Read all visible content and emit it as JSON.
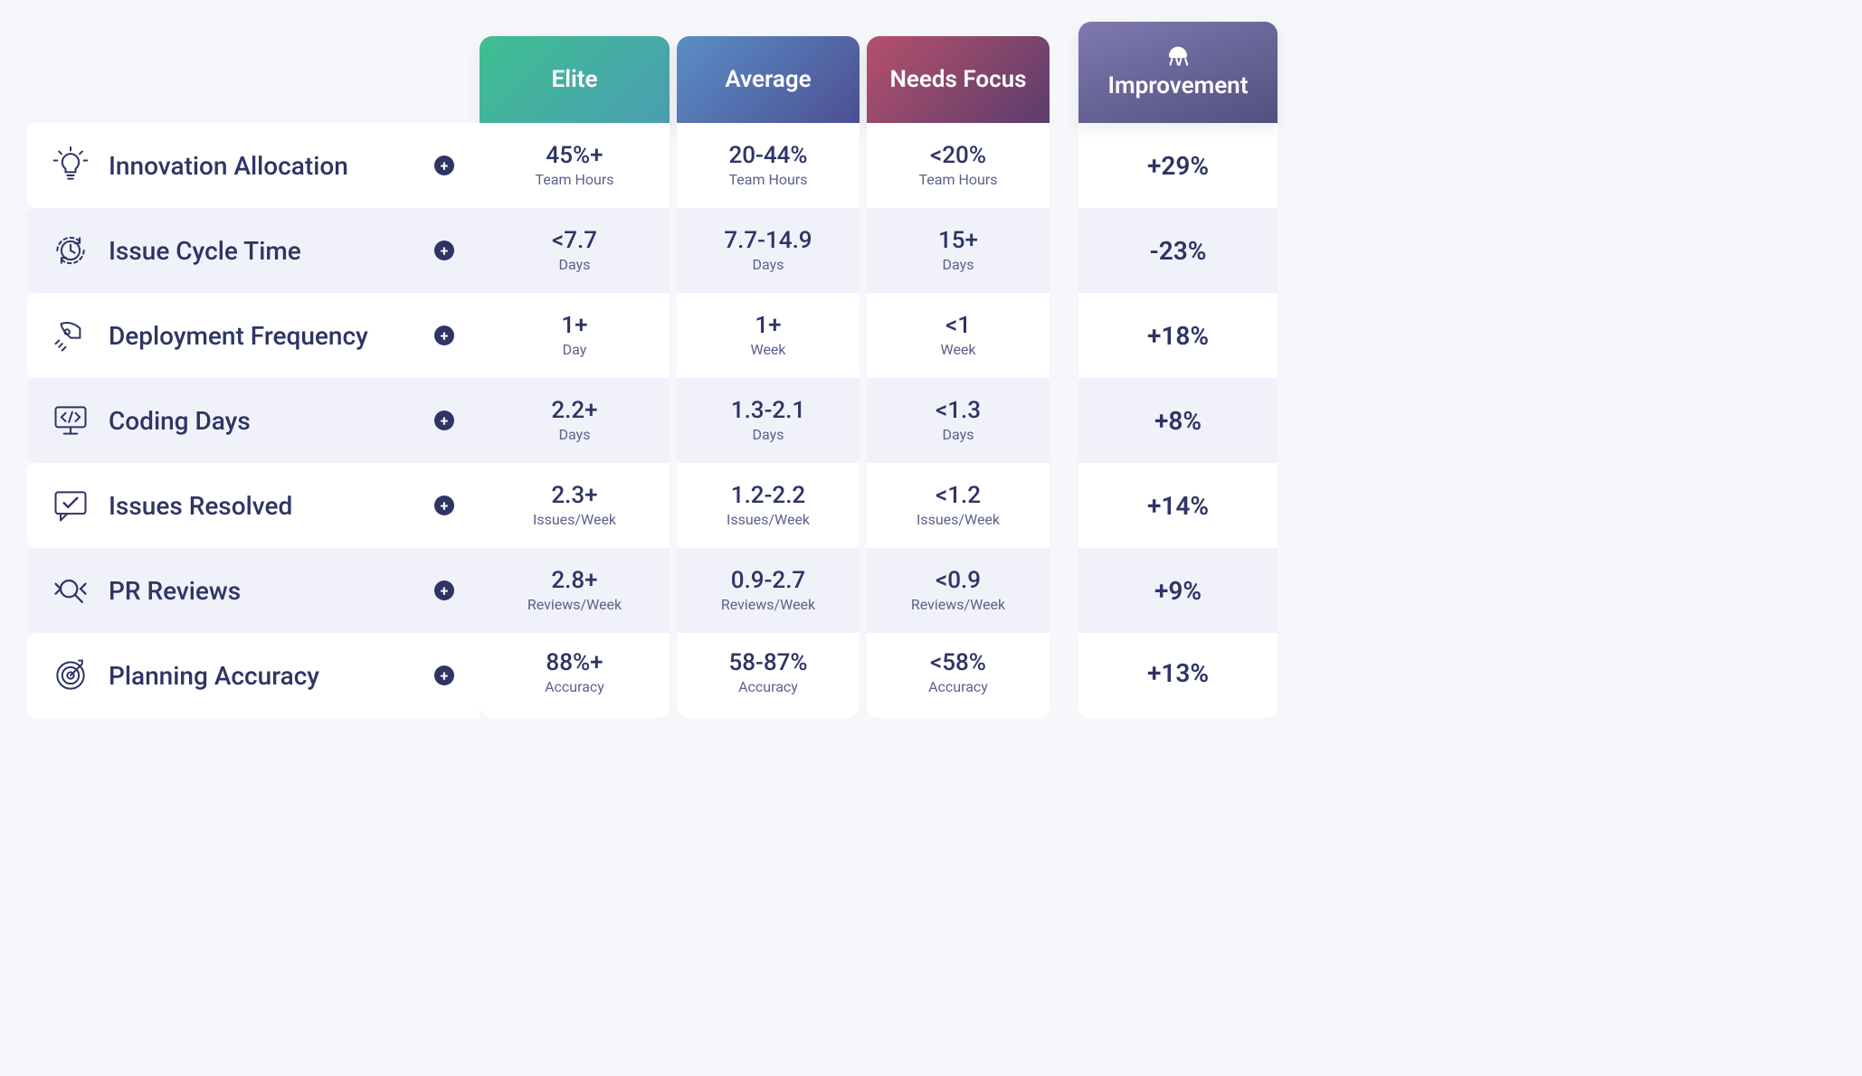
{
  "colors": {
    "background": "#f6f7fb",
    "ink": "#2e3565",
    "ink_sub": "#5b628c",
    "row_alt": "#f1f2f9",
    "white": "#ffffff"
  },
  "typography": {
    "header_fontsize_pt": 20,
    "row_label_fontsize_pt": 21,
    "value_fontsize_pt": 20,
    "unit_fontsize_pt": 12,
    "improvement_fontsize_pt": 21
  },
  "columns": [
    {
      "key": "elite",
      "label": "Elite",
      "gradient": [
        "#3fbf91",
        "#4a9eb2"
      ]
    },
    {
      "key": "average",
      "label": "Average",
      "gradient": [
        "#5a8ec6",
        "#4d4f93"
      ]
    },
    {
      "key": "needs_focus",
      "label": "Needs Focus",
      "gradient": [
        "#b6506b",
        "#5a3d6d"
      ]
    },
    {
      "key": "improvement",
      "label": "Improvement",
      "gradient": [
        "#7f79b0",
        "#53507f"
      ],
      "has_logo": true
    }
  ],
  "rows": [
    {
      "icon": "lightbulb",
      "name": "Innovation Allocation",
      "elite": {
        "value": "45%+",
        "unit": "Team Hours"
      },
      "average": {
        "value": "20-44%",
        "unit": "Team Hours"
      },
      "needs_focus": {
        "value": "<20%",
        "unit": "Team Hours"
      },
      "improvement": "+29%"
    },
    {
      "icon": "clock-cycle",
      "name": "Issue Cycle Time",
      "elite": {
        "value": "<7.7",
        "unit": "Days"
      },
      "average": {
        "value": "7.7-14.9",
        "unit": "Days"
      },
      "needs_focus": {
        "value": "15+",
        "unit": "Days"
      },
      "improvement": "-23%"
    },
    {
      "icon": "rocket",
      "name": "Deployment Frequency",
      "elite": {
        "value": "1+",
        "unit": "Day"
      },
      "average": {
        "value": "1+",
        "unit": "Week"
      },
      "needs_focus": {
        "value": "<1",
        "unit": "Week"
      },
      "improvement": "+18%"
    },
    {
      "icon": "code-monitor",
      "name": "Coding Days",
      "elite": {
        "value": "2.2+",
        "unit": "Days"
      },
      "average": {
        "value": "1.3-2.1",
        "unit": "Days"
      },
      "needs_focus": {
        "value": "<1.3",
        "unit": "Days"
      },
      "improvement": "+8%"
    },
    {
      "icon": "check-chat",
      "name": "Issues Resolved",
      "elite": {
        "value": "2.3+",
        "unit": "Issues/Week"
      },
      "average": {
        "value": "1.2-2.2",
        "unit": "Issues/Week"
      },
      "needs_focus": {
        "value": "<1.2",
        "unit": "Issues/Week"
      },
      "improvement": "+14%"
    },
    {
      "icon": "code-review",
      "name": "PR Reviews",
      "elite": {
        "value": "2.8+",
        "unit": "Reviews/Week"
      },
      "average": {
        "value": "0.9-2.7",
        "unit": "Reviews/Week"
      },
      "needs_focus": {
        "value": "<0.9",
        "unit": "Reviews/Week"
      },
      "improvement": "+9%"
    },
    {
      "icon": "target",
      "name": "Planning Accuracy",
      "elite": {
        "value": "88%+",
        "unit": "Accuracy"
      },
      "average": {
        "value": "58-87%",
        "unit": "Accuracy"
      },
      "needs_focus": {
        "value": "<58%",
        "unit": "Accuracy"
      },
      "improvement": "+13%"
    }
  ]
}
